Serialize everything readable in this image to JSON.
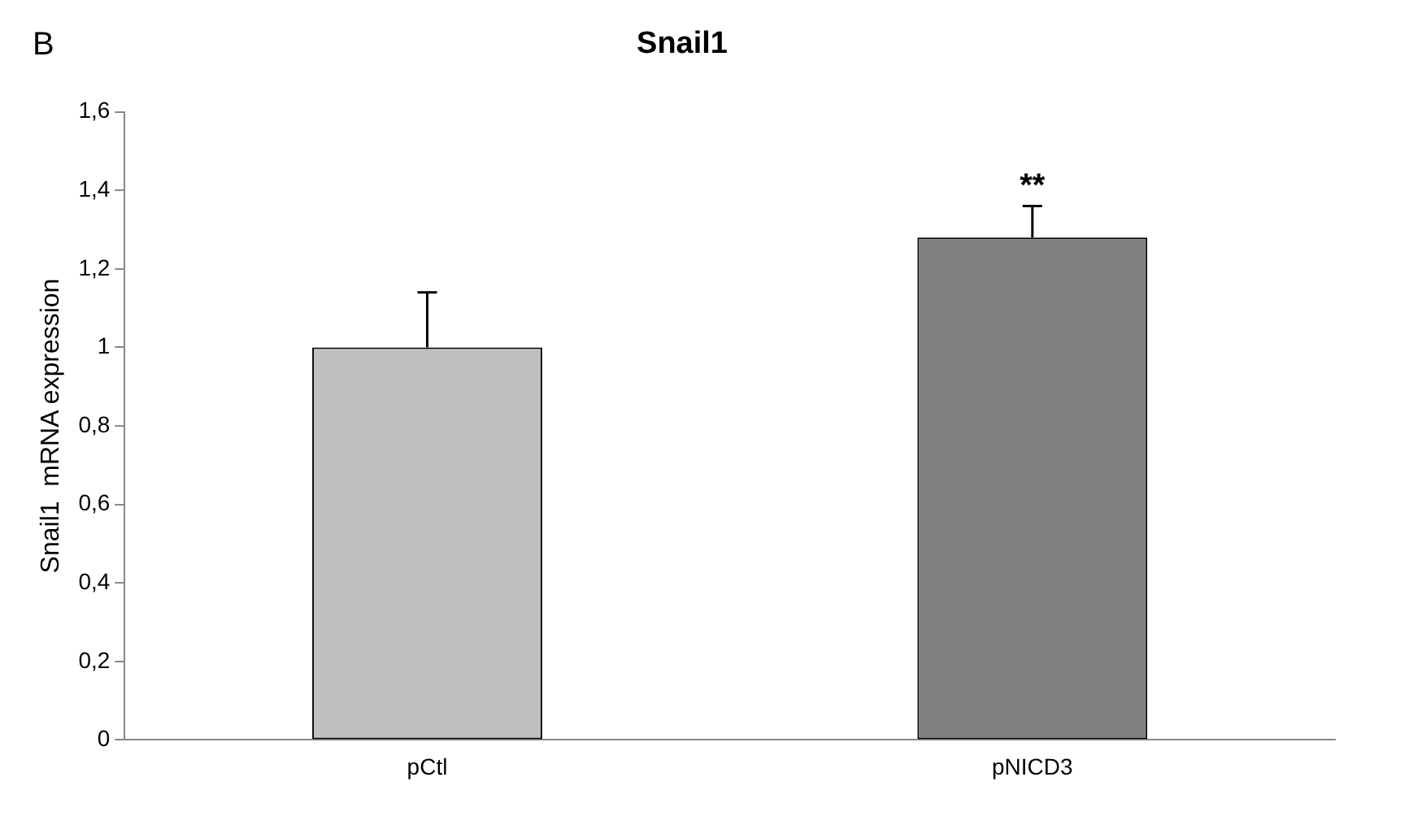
{
  "chart_data": {
    "type": "bar",
    "title": "Snail1",
    "ylabel": "Snail1  mRNA expression",
    "categories": [
      "pCtl",
      "pNICD3"
    ],
    "values": [
      1.0,
      1.28
    ],
    "colors": [
      "#bfbfbf",
      "#808080"
    ],
    "errors": [
      [
        1.0,
        1.14
      ],
      [
        1.28,
        1.36
      ]
    ],
    "ylim": [
      0,
      1.6
    ],
    "yticks": [
      0,
      {
        "value": 0.2,
        "label": "0,2"
      },
      {
        "value": 0.4,
        "label": "0,4"
      },
      {
        "value": 0.6,
        "label": "0,6"
      },
      {
        "value": 0.8,
        "label": "0,8"
      },
      1,
      {
        "value": 1.2,
        "label": "1,2"
      },
      {
        "value": 1.4,
        "label": "1,4"
      },
      {
        "value": 1.6,
        "label": "1,6"
      }
    ],
    "grid": false,
    "legend": false,
    "annotations": [
      "B",
      "**"
    ]
  }
}
